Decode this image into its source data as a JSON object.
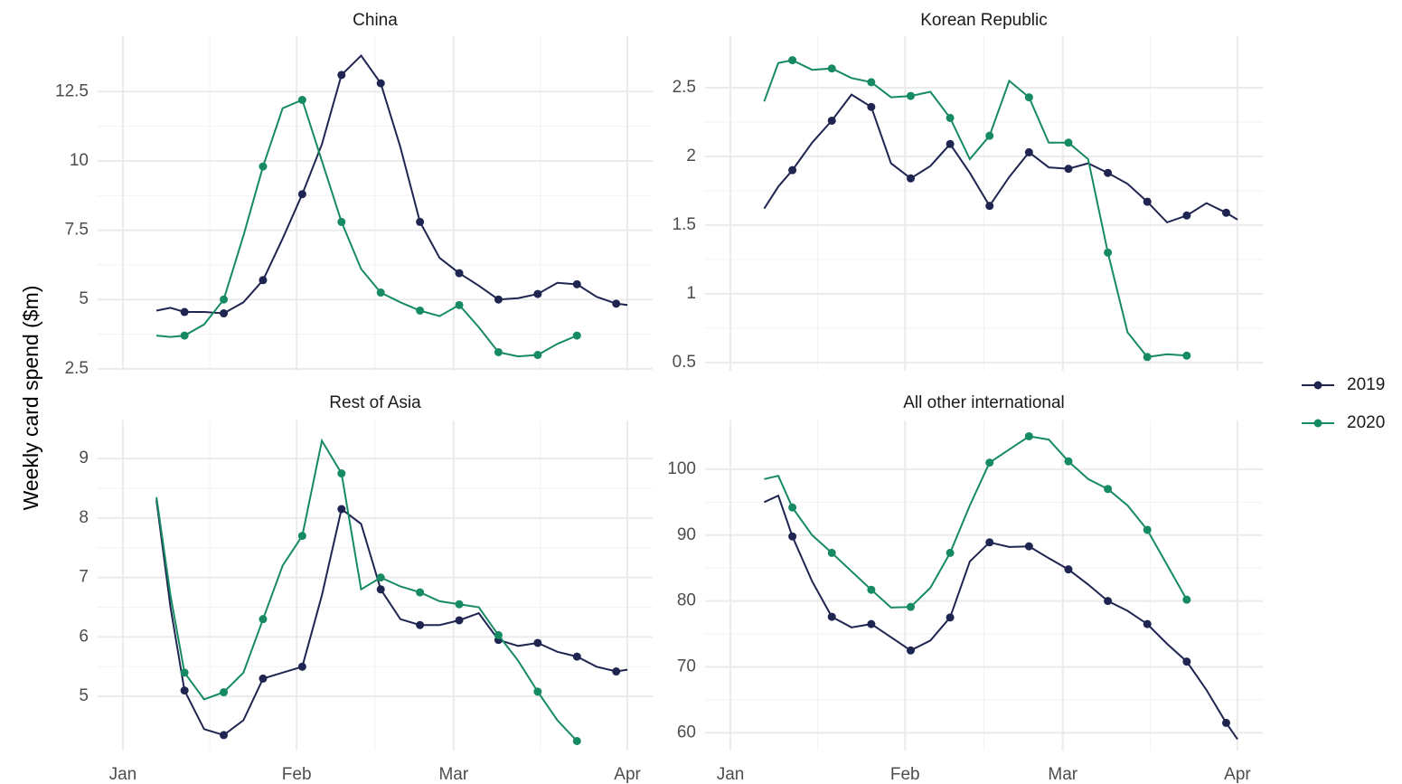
{
  "ylabel": "Weekly card spend ($m)",
  "chart_data": [
    {
      "type": "line",
      "title": "China",
      "x": [
        7,
        9.5,
        12,
        15.5,
        19,
        22.5,
        26,
        29.5,
        33,
        36.5,
        40,
        43.5,
        47,
        50.5,
        54,
        57.5,
        61,
        64.5,
        68,
        71.5,
        75,
        78.5,
        82,
        85.5,
        89,
        91
      ],
      "series": [
        {
          "name": "2019",
          "color": "#1f2551",
          "values": [
            4.6,
            4.7,
            4.55,
            4.55,
            4.5,
            4.9,
            5.7,
            7.2,
            8.8,
            10.6,
            13.1,
            13.8,
            12.8,
            10.5,
            7.8,
            6.5,
            5.95,
            5.5,
            5.0,
            5.05,
            5.2,
            5.6,
            5.55,
            5.1,
            4.85,
            4.8
          ]
        },
        {
          "name": "2020",
          "color": "#168a62",
          "values": [
            3.7,
            3.65,
            3.7,
            4.1,
            5.0,
            7.3,
            9.8,
            11.9,
            12.2,
            10.0,
            7.8,
            6.1,
            5.25,
            4.9,
            4.6,
            4.4,
            4.8,
            4.0,
            3.1,
            2.95,
            3.0,
            3.4,
            3.7,
            null,
            null,
            null
          ]
        }
      ],
      "xlim": [
        -3.5,
        95.5
      ],
      "xticks": [
        1,
        32,
        60,
        91
      ],
      "ylim": [
        2.43,
        14.5
      ],
      "yticks": [
        2.5,
        5.0,
        7.5,
        10.0,
        12.5
      ],
      "grid": true
    },
    {
      "type": "line",
      "title": "Korean Republic",
      "x": [
        7,
        9.5,
        12,
        15.5,
        19,
        22.5,
        26,
        29.5,
        33,
        36.5,
        40,
        43.5,
        47,
        50.5,
        54,
        57.5,
        61,
        64.5,
        68,
        71.5,
        75,
        78.5,
        82,
        85.5,
        89,
        91
      ],
      "series": [
        {
          "name": "2019",
          "color": "#1f2551",
          "values": [
            1.62,
            1.78,
            1.9,
            2.1,
            2.26,
            2.45,
            2.36,
            1.95,
            1.84,
            1.93,
            2.09,
            1.88,
            1.64,
            1.85,
            2.03,
            1.92,
            1.91,
            1.95,
            1.88,
            1.8,
            1.67,
            1.52,
            1.57,
            1.66,
            1.59,
            1.54
          ]
        },
        {
          "name": "2020",
          "color": "#168a62",
          "values": [
            2.4,
            2.68,
            2.7,
            2.63,
            2.64,
            2.57,
            2.54,
            2.43,
            2.44,
            2.47,
            2.28,
            1.98,
            2.15,
            2.55,
            2.43,
            2.1,
            2.1,
            1.98,
            1.3,
            0.72,
            0.54,
            0.56,
            0.55,
            null,
            null,
            null
          ]
        }
      ],
      "xlim": [
        -3.5,
        95.5
      ],
      "xticks": [
        1,
        32,
        60,
        91
      ],
      "ylim": [
        0.44,
        2.875
      ],
      "yticks": [
        0.5,
        1.0,
        1.5,
        2.0,
        2.5
      ],
      "grid": true
    },
    {
      "type": "line",
      "title": "Rest of Asia",
      "x": [
        7,
        9.5,
        12,
        15.5,
        19,
        22.5,
        26,
        29.5,
        33,
        36.5,
        40,
        43.5,
        47,
        50.5,
        54,
        57.5,
        61,
        64.5,
        68,
        71.5,
        75,
        78.5,
        82,
        85.5,
        89,
        91
      ],
      "series": [
        {
          "name": "2019",
          "color": "#1f2551",
          "values": [
            8.3,
            6.5,
            5.1,
            4.45,
            4.35,
            4.6,
            5.3,
            5.4,
            5.5,
            6.7,
            8.15,
            7.9,
            6.8,
            6.3,
            6.2,
            6.2,
            6.28,
            6.4,
            5.95,
            5.85,
            5.9,
            5.75,
            5.67,
            5.5,
            5.42,
            5.45
          ]
        },
        {
          "name": "2020",
          "color": "#168a62",
          "values": [
            8.35,
            6.7,
            5.4,
            4.95,
            5.07,
            5.4,
            6.3,
            7.2,
            7.7,
            9.3,
            8.75,
            6.8,
            7.0,
            6.85,
            6.75,
            6.6,
            6.55,
            6.5,
            6.03,
            5.6,
            5.08,
            4.6,
            4.25,
            null,
            null,
            null
          ]
        }
      ],
      "xlim": [
        -3.5,
        95.5
      ],
      "xticks": [
        {
          "value": 1,
          "label": "Jan"
        },
        {
          "value": 32,
          "label": "Feb"
        },
        {
          "value": 60,
          "label": "Mar"
        },
        {
          "value": 91,
          "label": "Apr"
        }
      ],
      "ylim": [
        4.09,
        9.64
      ],
      "yticks": [
        5,
        6,
        7,
        8,
        9
      ],
      "grid": true
    },
    {
      "type": "line",
      "title": "All other international",
      "x": [
        7,
        9.5,
        12,
        15.5,
        19,
        22.5,
        26,
        29.5,
        33,
        36.5,
        40,
        43.5,
        47,
        50.5,
        54,
        57.5,
        61,
        64.5,
        68,
        71.5,
        75,
        78.5,
        82,
        85.5,
        89,
        91
      ],
      "series": [
        {
          "name": "2019",
          "color": "#1f2551",
          "values": [
            95,
            96,
            89.8,
            83,
            77.6,
            76,
            76.5,
            74.5,
            72.5,
            74,
            77.5,
            86,
            88.9,
            88.2,
            88.3,
            86.5,
            84.8,
            82.5,
            80,
            78.5,
            76.5,
            73.5,
            70.8,
            66.5,
            61.5,
            59
          ]
        },
        {
          "name": "2020",
          "color": "#168a62",
          "values": [
            98.5,
            99,
            94.2,
            90,
            87.3,
            84.5,
            81.7,
            79,
            79.1,
            82,
            87.3,
            94.5,
            101,
            103,
            105,
            104.5,
            101.2,
            98.5,
            97,
            94.5,
            90.8,
            85.5,
            80.2,
            null,
            null,
            null
          ]
        }
      ],
      "xlim": [
        -3.5,
        95.5
      ],
      "xticks": [
        {
          "value": 1,
          "label": "Jan"
        },
        {
          "value": 32,
          "label": "Feb"
        },
        {
          "value": 60,
          "label": "Mar"
        },
        {
          "value": 91,
          "label": "Apr"
        }
      ],
      "ylim": [
        57.3,
        107.4
      ],
      "yticks": [
        60,
        70,
        80,
        90,
        100
      ],
      "grid": true
    }
  ]
}
